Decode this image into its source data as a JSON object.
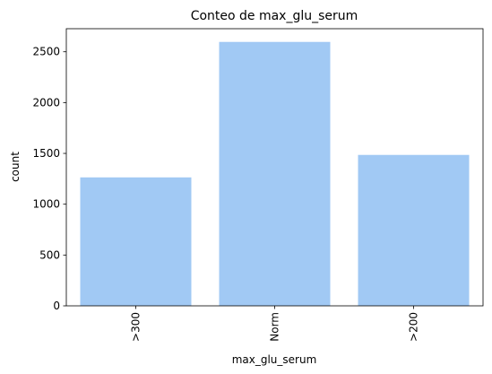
{
  "chart_data": {
    "type": "bar",
    "title": "Conteo de max_glu_serum",
    "xlabel": "max_glu_serum",
    "ylabel": "count",
    "categories": [
      ">300",
      "Norm",
      ">200"
    ],
    "values": [
      1264,
      2597,
      1485
    ],
    "ylim": [
      0,
      2727
    ],
    "yticks": [
      0,
      500,
      1000,
      1500,
      2000,
      2500
    ],
    "ytick_labels": [
      "0",
      "500",
      "1000",
      "1500",
      "2000",
      "2500"
    ],
    "xtick_rotation": "vertical",
    "grid": false,
    "legend": "none",
    "bar_color": "#a1c9f4"
  }
}
